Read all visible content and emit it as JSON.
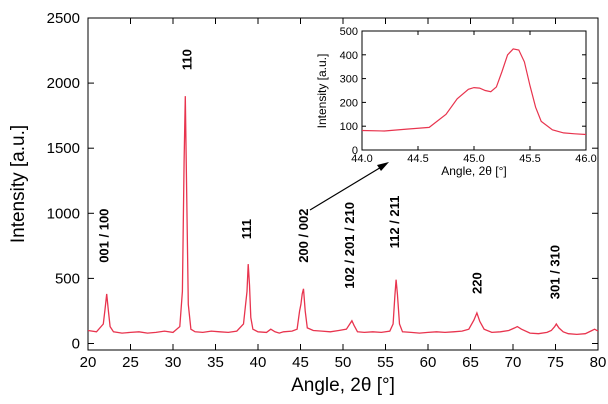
{
  "chart_data": [
    {
      "type": "line",
      "xlabel": "Angle, 2θ [°]",
      "ylabel": "Intensity [a.u.]",
      "xlim": [
        20,
        80
      ],
      "ylim": [
        -50,
        2500
      ],
      "x_ticks": [
        20,
        25,
        30,
        35,
        40,
        45,
        50,
        55,
        60,
        65,
        70,
        75,
        80
      ],
      "y_ticks": [
        0,
        500,
        1000,
        1500,
        2000,
        2500
      ],
      "grid": false,
      "line_color": "#e8344e",
      "series": [
        {
          "x": [
            20,
            21,
            21.8,
            22.0,
            22.2,
            22.4,
            22.6,
            23,
            24,
            25,
            26,
            27,
            28,
            29,
            30,
            30.8,
            31.1,
            31.3,
            31.45,
            31.6,
            31.8,
            32.1,
            32.6,
            33.5,
            34.5,
            35.5,
            36.5,
            37.5,
            38.3,
            38.7,
            38.85,
            39.0,
            39.15,
            39.4,
            40,
            41,
            41.5,
            42,
            42.5,
            43,
            44,
            44.6,
            44.9,
            45.05,
            45.2,
            45.35,
            45.55,
            45.8,
            46.5,
            47.5,
            48.5,
            49.5,
            50.4,
            50.8,
            51.05,
            51.3,
            51.7,
            52.5,
            53.5,
            54.5,
            55.5,
            55.9,
            56.1,
            56.25,
            56.4,
            56.65,
            57,
            58,
            59,
            60,
            61,
            62,
            63,
            64,
            64.8,
            65.4,
            65.75,
            66.1,
            66.6,
            67.5,
            68.5,
            69.5,
            70.2,
            70.5,
            71,
            72,
            73,
            74,
            74.5,
            74.9,
            75.1,
            75.4,
            75.9,
            76.5,
            77.5,
            78.5,
            79.3,
            79.6,
            80
          ],
          "y": [
            100,
            90,
            150,
            260,
            380,
            250,
            130,
            90,
            80,
            85,
            90,
            80,
            85,
            95,
            85,
            130,
            400,
            1400,
            1900,
            1200,
            300,
            110,
            90,
            85,
            95,
            90,
            85,
            95,
            150,
            400,
            610,
            450,
            200,
            110,
            90,
            85,
            110,
            90,
            80,
            90,
            95,
            110,
            250,
            300,
            380,
            420,
            250,
            120,
            100,
            95,
            90,
            100,
            110,
            150,
            175,
            140,
            90,
            85,
            90,
            85,
            95,
            150,
            370,
            490,
            380,
            150,
            90,
            85,
            80,
            85,
            90,
            85,
            90,
            95,
            110,
            180,
            235,
            170,
            110,
            85,
            90,
            100,
            120,
            130,
            110,
            80,
            75,
            85,
            100,
            130,
            150,
            120,
            90,
            75,
            70,
            75,
            100,
            110,
            95
          ]
        }
      ],
      "annotations": [
        {
          "text": "001 / 100",
          "x": 21.8,
          "y": 620
        },
        {
          "text": "110",
          "x": 31.6,
          "y": 2100
        },
        {
          "text": "111",
          "x": 38.6,
          "y": 800
        },
        {
          "text": "200 / 002",
          "x": 45.3,
          "y": 620
        },
        {
          "text": "102 / 201 / 210",
          "x": 50.7,
          "y": 420
        },
        {
          "text": "112 / 211",
          "x": 56.0,
          "y": 730
        },
        {
          "text": "220",
          "x": 65.7,
          "y": 380
        },
        {
          "text": "301 / 310",
          "x": 74.9,
          "y": 340
        }
      ]
    },
    {
      "type": "line",
      "xlabel": "Angle, 2θ [°]",
      "ylabel": "Intensity [a.u.]",
      "xlim": [
        44.0,
        46.0
      ],
      "ylim": [
        0,
        500
      ],
      "x_ticks": [
        "44.0",
        "44.5",
        "45.0",
        "45.5",
        "46.0"
      ],
      "y_ticks": [
        0,
        100,
        200,
        300,
        400,
        500
      ],
      "grid": false,
      "line_color": "#e8344e",
      "series": [
        {
          "x": [
            44.0,
            44.2,
            44.4,
            44.6,
            44.75,
            44.85,
            44.95,
            45.0,
            45.05,
            45.1,
            45.15,
            45.2,
            45.25,
            45.3,
            45.35,
            45.4,
            45.45,
            45.5,
            45.55,
            45.6,
            45.7,
            45.8,
            45.9,
            46.0
          ],
          "y": [
            82,
            80,
            88,
            95,
            150,
            215,
            255,
            262,
            260,
            250,
            245,
            265,
            330,
            400,
            425,
            420,
            370,
            270,
            180,
            120,
            85,
            72,
            68,
            65
          ]
        }
      ]
    }
  ]
}
